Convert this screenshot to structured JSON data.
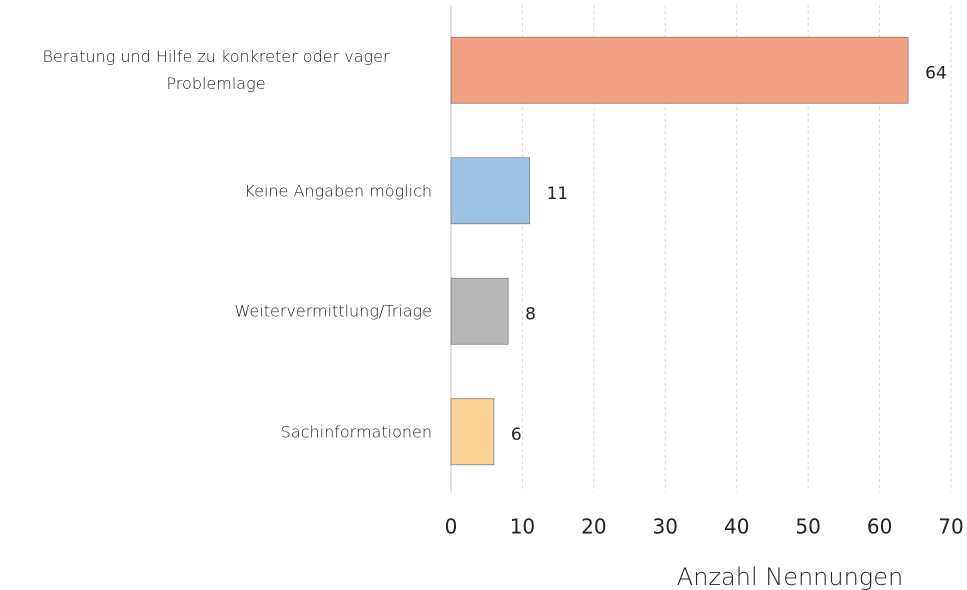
{
  "chart_data": {
    "type": "barh",
    "categories": [
      "Beratung und Hilfe zu konkreter oder vager Problemlage",
      "Keine Angaben möglich",
      "Weitervermittlung/Triage",
      "Sachinformationen"
    ],
    "values": [
      64,
      11,
      8,
      6
    ],
    "colors": [
      "#f4a083",
      "#9fc3e2",
      "#b8b8b8",
      "#fdd396"
    ],
    "xlabel": "Anzahl Nennungen",
    "xlim": [
      0,
      70
    ],
    "xticks": [
      0,
      10,
      20,
      30,
      40,
      50,
      60,
      70
    ],
    "grid": true
  }
}
